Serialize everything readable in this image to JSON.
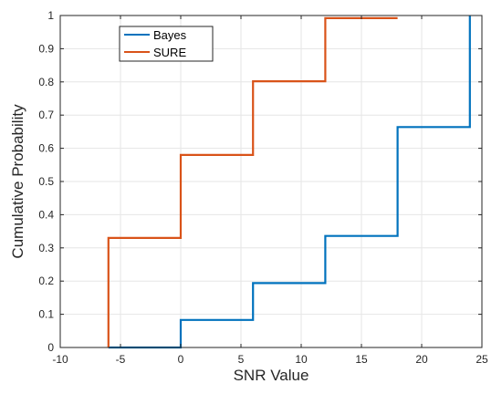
{
  "chart_data": {
    "type": "line",
    "xlabel": "SNR Value",
    "ylabel": "Cumulative Probability",
    "xlim": [
      -10,
      25
    ],
    "ylim": [
      0,
      1
    ],
    "xticks": [
      -10,
      -5,
      0,
      5,
      10,
      15,
      20,
      25
    ],
    "yticks": [
      0,
      0.1,
      0.2,
      0.3,
      0.4,
      0.5,
      0.6,
      0.7,
      0.8,
      0.9,
      1
    ],
    "grid": true,
    "legend_position": "top-left",
    "line_style": "step",
    "series": [
      {
        "name": "Bayes",
        "color": "#0072BD",
        "x": [
          -6,
          0,
          0,
          6,
          6,
          12,
          12,
          18,
          18,
          24,
          24
        ],
        "y": [
          0,
          0,
          0.083,
          0.083,
          0.194,
          0.194,
          0.336,
          0.336,
          0.664,
          0.664,
          1.0
        ]
      },
      {
        "name": "SURE",
        "color": "#D95319",
        "x": [
          -6,
          -6,
          0,
          0,
          6,
          6,
          12,
          12,
          18
        ],
        "y": [
          0,
          0.33,
          0.33,
          0.58,
          0.58,
          0.802,
          0.802,
          0.992,
          0.992
        ]
      }
    ]
  }
}
